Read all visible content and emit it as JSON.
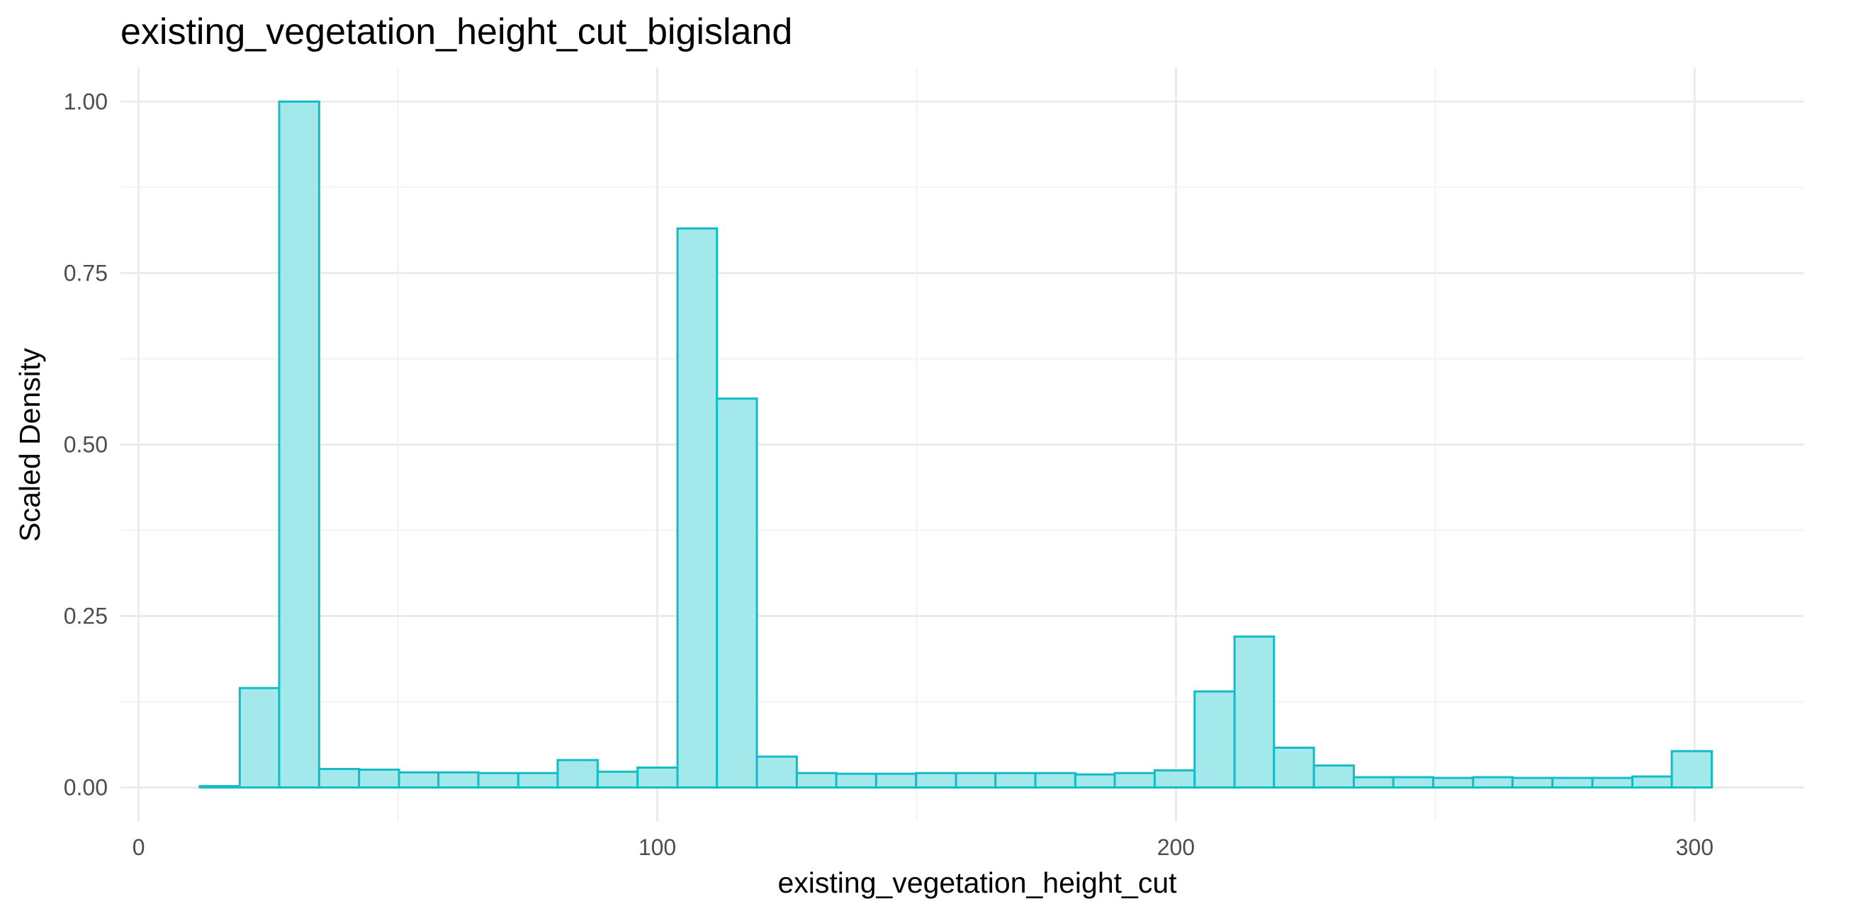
{
  "chart_data": {
    "type": "bar",
    "subtype": "histogram",
    "title": "existing_vegetation_height_cut_bigisland",
    "xlabel": "existing_vegetation_height_cut",
    "ylabel": "Scaled Density",
    "xlim": [
      -3.5,
      321
    ],
    "ylim": [
      -0.05,
      1.05
    ],
    "x_ticks": [
      0,
      100,
      200,
      300
    ],
    "x_tick_labels": [
      "0",
      "100",
      "200",
      "300"
    ],
    "x_minor_ticks": [
      50,
      150,
      250
    ],
    "y_ticks": [
      0,
      0.25,
      0.5,
      0.75,
      1.0
    ],
    "y_tick_labels": [
      "0.00",
      "0.25",
      "0.50",
      "0.75",
      "1.00"
    ],
    "y_minor_ticks": [
      0.125,
      0.375,
      0.625,
      0.875
    ],
    "grid": true,
    "bin_edges": [
      11.8,
      19.5,
      27.1,
      34.8,
      42.5,
      50.2,
      57.8,
      65.5,
      73.2,
      80.8,
      88.5,
      96.2,
      103.9,
      111.5,
      119.2,
      126.9,
      134.5,
      142.2,
      149.9,
      157.6,
      165.2,
      172.9,
      180.6,
      188.2,
      195.9,
      203.6,
      211.3,
      218.9,
      226.6,
      234.3,
      241.9,
      249.6,
      257.3,
      264.9,
      272.6,
      280.3,
      288.0,
      295.6,
      303.3
    ],
    "values": [
      0.002,
      0.145,
      1.0,
      0.027,
      0.026,
      0.022,
      0.022,
      0.021,
      0.021,
      0.04,
      0.023,
      0.029,
      0.815,
      0.567,
      0.045,
      0.021,
      0.02,
      0.02,
      0.021,
      0.021,
      0.021,
      0.021,
      0.019,
      0.021,
      0.025,
      0.14,
      0.22,
      0.058,
      0.032,
      0.015,
      0.015,
      0.014,
      0.015,
      0.014,
      0.014,
      0.014,
      0.016,
      0.053
    ],
    "fill_color": "#a3e8ea",
    "line_color": "#15bcc6"
  }
}
